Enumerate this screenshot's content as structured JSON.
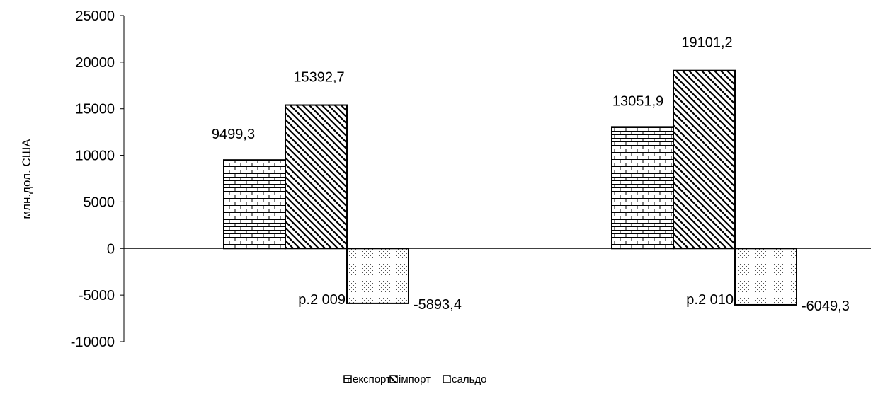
{
  "chart_data": {
    "type": "bar",
    "title": "",
    "xlabel": "",
    "ylabel": "млн.дол. США",
    "categories": [
      "р.2 009",
      "р.2 010"
    ],
    "series": [
      {
        "name": "експорт",
        "values": [
          9499.3,
          13051.9
        ],
        "labels": [
          "9499,3",
          "13051,9"
        ],
        "pattern": "brick"
      },
      {
        "name": "імпорт",
        "values": [
          15392.7,
          19101.2
        ],
        "labels": [
          "15392,7",
          "19101,2"
        ],
        "pattern": "diagonal"
      },
      {
        "name": "сальдо",
        "values": [
          -5893.4,
          -6049.3
        ],
        "labels": [
          "-5893,4",
          "-6049,3"
        ],
        "pattern": "dots"
      }
    ],
    "ylim": [
      -10000,
      25000
    ],
    "yticks": [
      25000,
      20000,
      15000,
      10000,
      5000,
      0,
      -5000,
      -10000
    ],
    "grid": false,
    "legend_position": "bottom"
  }
}
